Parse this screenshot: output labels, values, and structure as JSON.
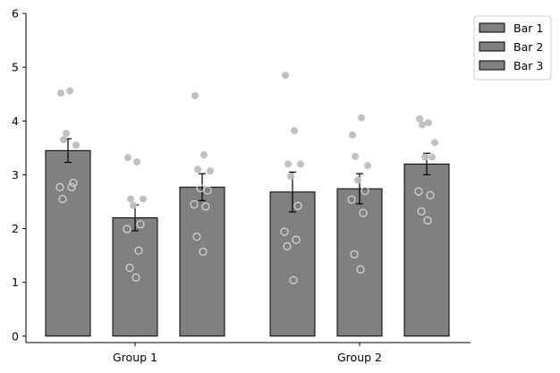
{
  "chart_data": {
    "type": "bar",
    "title": "",
    "xlabel": "",
    "ylabel": "",
    "ylim": [
      -0.12,
      6.0
    ],
    "yticks": [
      0,
      1,
      2,
      3,
      4,
      5,
      6
    ],
    "ytick_labels": [
      "0",
      "1",
      "2",
      "3",
      "4",
      "5",
      "6"
    ],
    "grid": false,
    "legend_position": "outside-top-right",
    "bar_color": "#808080",
    "bar_edge_color": "#000000",
    "point_color": "#bdbdbd",
    "categories": [
      "Group 1",
      "Group 2"
    ],
    "series": [
      {
        "name": "Bar 1",
        "values": [
          3.45,
          2.68
        ],
        "errors": [
          0.22,
          0.37
        ],
        "points": [
          [
            4.52,
            4.56,
            3.65,
            3.55,
            3.77,
            2.85,
            2.77,
            2.77,
            2.55
          ],
          [
            4.85,
            3.82,
            3.2,
            3.2,
            2.97,
            2.42,
            1.94,
            1.79,
            1.67,
            1.04
          ]
        ]
      },
      {
        "name": "Bar 2",
        "values": [
          2.2,
          2.74
        ],
        "errors": [
          0.24,
          0.28
        ],
        "points": [
          [
            3.32,
            3.24,
            2.55,
            2.55,
            2.43,
            2.08,
            1.99,
            1.59,
            1.27,
            1.09
          ],
          [
            3.74,
            4.06,
            3.34,
            3.17,
            2.9,
            2.7,
            2.54,
            2.29,
            1.52,
            1.24
          ]
        ]
      },
      {
        "name": "Bar 3",
        "values": [
          2.77,
          3.2
        ],
        "errors": [
          0.25,
          0.2
        ],
        "points": [
          [
            4.47,
            3.37,
            3.1,
            3.07,
            2.75,
            2.71,
            2.45,
            2.41,
            1.85,
            1.57
          ],
          [
            4.04,
            3.97,
            3.93,
            3.6,
            3.33,
            3.33,
            2.69,
            2.62,
            2.32,
            2.15
          ]
        ]
      }
    ]
  }
}
